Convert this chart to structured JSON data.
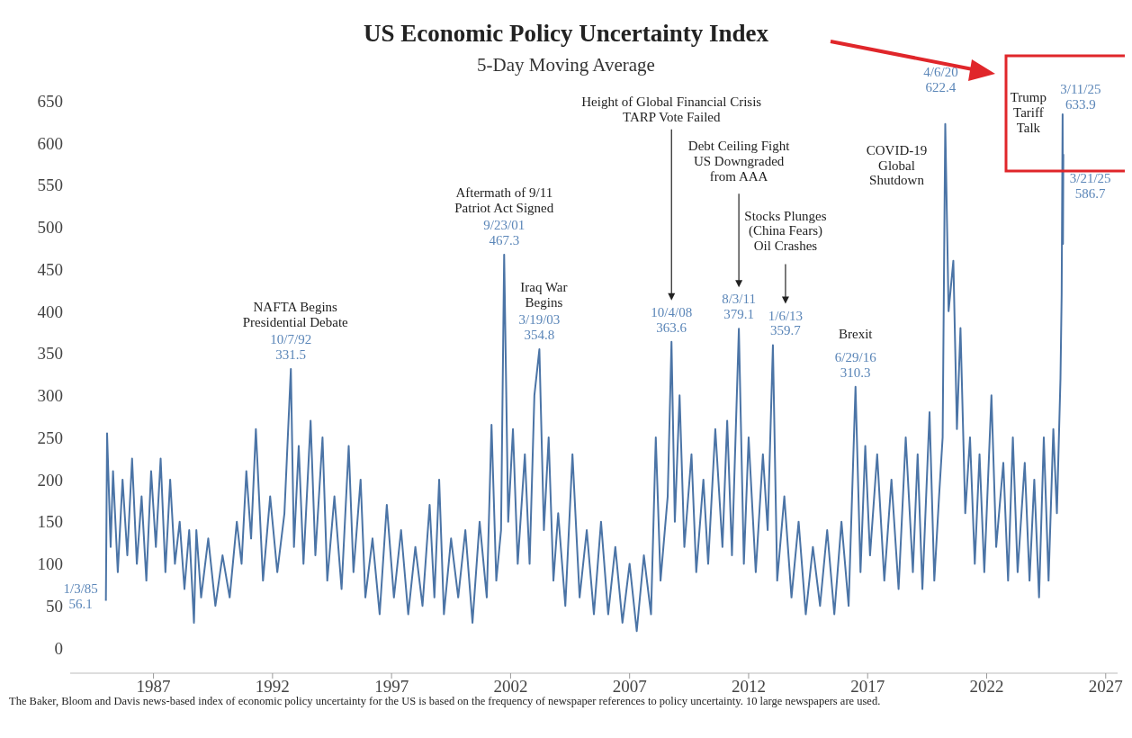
{
  "chart_data": {
    "type": "line",
    "title": "US Economic Policy Uncertainty Index",
    "subtitle": "5-Day Moving Average",
    "color": "#4b74a6",
    "x": [
      1985.0,
      1985.05,
      1985.2,
      1985.3,
      1985.5,
      1985.7,
      1985.9,
      1986.1,
      1986.3,
      1986.5,
      1986.7,
      1986.9,
      1987.1,
      1987.3,
      1987.5,
      1987.7,
      1987.9,
      1988.1,
      1988.3,
      1988.5,
      1988.7,
      1988.8,
      1989.0,
      1989.3,
      1989.6,
      1989.9,
      1990.2,
      1990.5,
      1990.7,
      1990.9,
      1991.1,
      1991.3,
      1991.6,
      1991.9,
      1992.2,
      1992.5,
      1992.77,
      1992.9,
      1993.1,
      1993.3,
      1993.6,
      1993.8,
      1994.1,
      1994.3,
      1994.6,
      1994.9,
      1995.2,
      1995.4,
      1995.7,
      1995.9,
      1996.2,
      1996.5,
      1996.8,
      1997.1,
      1997.4,
      1997.7,
      1998.0,
      1998.3,
      1998.6,
      1998.8,
      1999.0,
      1999.2,
      1999.5,
      1999.8,
      2000.1,
      2000.4,
      2000.7,
      2001.0,
      2001.2,
      2001.4,
      2001.6,
      2001.73,
      2001.9,
      2002.1,
      2002.3,
      2002.6,
      2002.8,
      2003.0,
      2003.21,
      2003.4,
      2003.6,
      2003.8,
      2004.0,
      2004.3,
      2004.6,
      2004.9,
      2005.2,
      2005.5,
      2005.8,
      2006.1,
      2006.4,
      2006.7,
      2007.0,
      2007.3,
      2007.6,
      2007.9,
      2008.1,
      2008.3,
      2008.6,
      2008.76,
      2008.9,
      2009.1,
      2009.3,
      2009.6,
      2009.8,
      2010.1,
      2010.3,
      2010.6,
      2010.9,
      2011.1,
      2011.3,
      2011.59,
      2011.8,
      2012.0,
      2012.3,
      2012.6,
      2012.8,
      2013.02,
      2013.2,
      2013.5,
      2013.8,
      2014.1,
      2014.4,
      2014.7,
      2015.0,
      2015.3,
      2015.6,
      2015.9,
      2016.2,
      2016.49,
      2016.7,
      2016.9,
      2017.1,
      2017.4,
      2017.7,
      2018.0,
      2018.3,
      2018.6,
      2018.9,
      2019.1,
      2019.3,
      2019.6,
      2019.8,
      2020.0,
      2020.15,
      2020.26,
      2020.4,
      2020.6,
      2020.75,
      2020.9,
      2021.1,
      2021.3,
      2021.5,
      2021.7,
      2021.9,
      2022.2,
      2022.4,
      2022.7,
      2022.9,
      2023.1,
      2023.3,
      2023.6,
      2023.8,
      2024.0,
      2024.2,
      2024.4,
      2024.6,
      2024.8,
      2024.95,
      2025.1,
      2025.15,
      2025.19,
      2025.205,
      2025.22
    ],
    "values": [
      56.1,
      255,
      120,
      210,
      90,
      200,
      110,
      225,
      100,
      180,
      80,
      210,
      120,
      225,
      90,
      200,
      100,
      150,
      70,
      140,
      30,
      140,
      60,
      130,
      50,
      110,
      60,
      150,
      100,
      210,
      130,
      260,
      80,
      180,
      90,
      160,
      331.5,
      120,
      240,
      100,
      270,
      110,
      250,
      80,
      180,
      70,
      240,
      90,
      200,
      60,
      130,
      40,
      170,
      60,
      140,
      40,
      120,
      50,
      170,
      60,
      200,
      40,
      130,
      60,
      140,
      30,
      150,
      60,
      265,
      80,
      140,
      467.3,
      150,
      260,
      100,
      230,
      100,
      300,
      354.8,
      140,
      250,
      80,
      160,
      50,
      230,
      60,
      140,
      40,
      150,
      40,
      120,
      30,
      100,
      20,
      110,
      40,
      250,
      80,
      180,
      363.6,
      150,
      300,
      120,
      230,
      90,
      200,
      100,
      260,
      120,
      270,
      110,
      379.1,
      100,
      250,
      90,
      230,
      140,
      359.7,
      80,
      180,
      60,
      150,
      40,
      120,
      50,
      140,
      40,
      150,
      50,
      310.3,
      90,
      240,
      110,
      230,
      80,
      200,
      70,
      250,
      90,
      230,
      70,
      280,
      80,
      180,
      250,
      622.4,
      400,
      460,
      260,
      380,
      160,
      250,
      100,
      230,
      90,
      300,
      120,
      220,
      80,
      250,
      90,
      220,
      80,
      200,
      60,
      250,
      80,
      260,
      160,
      320,
      420,
      633.9,
      480,
      586.7
    ],
    "xlim": [
      1983.5,
      2027.5
    ],
    "xticks": [
      1987,
      1992,
      1997,
      2002,
      2007,
      2012,
      2017,
      2022,
      2027
    ],
    "ylim": [
      -30,
      650
    ],
    "yticks": [
      0,
      50,
      100,
      150,
      200,
      250,
      300,
      350,
      400,
      450,
      500,
      550,
      600,
      650
    ],
    "annotations": [
      {
        "text": "1/3/85\n56.1",
        "x": 1985.0,
        "y": 56.1
      },
      {
        "text": "NAFTA Begins\nPresidential Debate",
        "x": 1992.77,
        "y": 331.5
      },
      {
        "text": "10/7/92\n331.5",
        "x": 1992.77,
        "y": 331.5
      },
      {
        "text": "Aftermath of 9/11\nPatriot Act Signed",
        "x": 2001.73,
        "y": 467.3
      },
      {
        "text": "9/23/01\n467.3",
        "x": 2001.73,
        "y": 467.3
      },
      {
        "text": "Iraq War\nBegins",
        "x": 2003.21,
        "y": 354.8
      },
      {
        "text": "3/19/03\n354.8",
        "x": 2003.21,
        "y": 354.8
      },
      "Height of Global Financial Crisis\nTARP Vote Failed",
      {
        "text": "10/4/08\n363.6",
        "x": 2008.76,
        "y": 363.6
      },
      "Debt Ceiling Fight\nUS Downgraded\nfrom AAA",
      {
        "text": "8/3/11\n379.1",
        "x": 2011.59,
        "y": 379.1
      },
      "Stocks Plunges\n(China Fears)\nOil Crashes",
      {
        "text": "1/6/13\n359.7",
        "x": 2013.02,
        "y": 359.7
      },
      {
        "text": "Brexit\n6/29/16\n310.3",
        "x": 2016.49,
        "y": 310.3
      },
      {
        "text": "COVID-19\nGlobal\nShutdown",
        "x": 2020.26,
        "y": 622.4
      },
      {
        "text": "4/6/20\n622.4",
        "x": 2020.26,
        "y": 622.4
      },
      {
        "text": "Trump\nTariff\nTalk",
        "x": 2025.19,
        "y": 633.9
      },
      {
        "text": "3/11/25\n633.9",
        "x": 2025.19,
        "y": 633.9
      },
      {
        "text": "3/21/25\n586.7",
        "x": 2025.22,
        "y": 586.7
      },
      "The Baker, Bloom and Davis news-based index of economic policy uncertainty for the US is based on the frequency of newspaper references to policy uncertainty. 10 large newspapers are used."
    ]
  }
}
